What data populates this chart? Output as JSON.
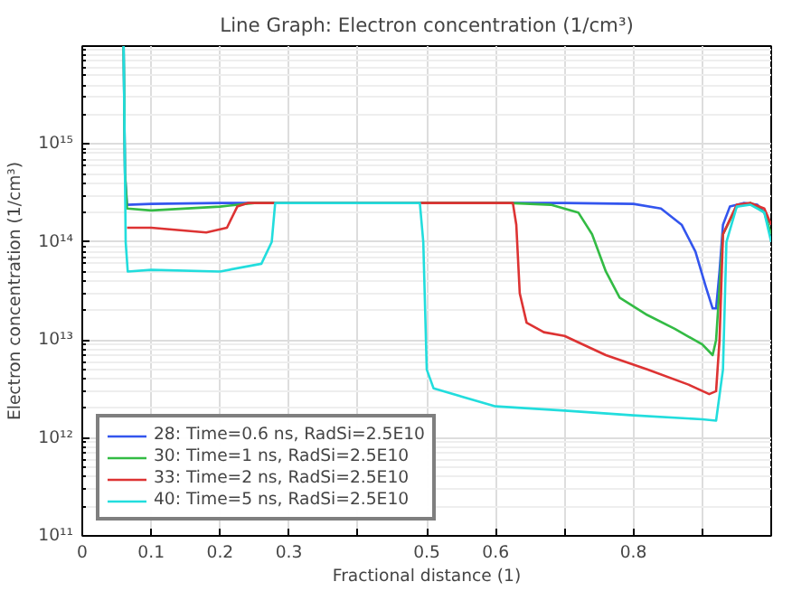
{
  "chart_data": {
    "type": "line",
    "title": "Line Graph: Electron concentration (1/cm³)",
    "xlabel": "Fractional distance (1)",
    "ylabel": "Electron concentration (1/cm³)",
    "log": "y",
    "grid": true,
    "legend": "bottom left",
    "line_style": "solid",
    "marker": "none",
    "xlim": [
      0,
      1
    ],
    "ylim": [
      100000000000.0,
      1e+16
    ],
    "xticks": [
      0,
      0.1,
      0.2,
      0.3,
      {
        "value": 0.4,
        "label": null
      },
      0.5,
      0.6,
      {
        "value": 0.7,
        "label": null
      },
      0.8,
      {
        "value": 0.9,
        "label": null
      }
    ],
    "yticks": [
      {
        "value": 100000000000.0,
        "label": "10¹¹"
      },
      {
        "value": 1000000000000.0,
        "label": "10¹²"
      },
      {
        "value": 10000000000000.0,
        "label": "10¹³"
      },
      {
        "value": 100000000000000.0,
        "label": "10¹⁴"
      },
      {
        "value": 1000000000000000.0,
        "label": "10¹⁵"
      },
      {
        "value": 1e+16,
        "label": null
      }
    ],
    "series": [
      {
        "name": "28: Time=0.6 ns, RadSi=2.5E10",
        "color": "#3355ee",
        "x": [
          0.06,
          0.062,
          0.065,
          0.1,
          0.2,
          0.7,
          0.8,
          0.84,
          0.87,
          0.89,
          0.905,
          0.915,
          0.92,
          0.925,
          0.93,
          0.94,
          0.96,
          0.98,
          0.99,
          1.0
        ],
        "values": [
          1e+16,
          500000000000000.0,
          240000000000000.0,
          245000000000000.0,
          250000000000000.0,
          250000000000000.0,
          245000000000000.0,
          220000000000000.0,
          150000000000000.0,
          80000000000000.0,
          35000000000000.0,
          21000000000000.0,
          21000000000000.0,
          50000000000000.0,
          150000000000000.0,
          230000000000000.0,
          250000000000000.0,
          240000000000000.0,
          200000000000000.0,
          150000000000000.0
        ]
      },
      {
        "name": "30: Time=1 ns, RadSi=2.5E10",
        "color": "#33bb44",
        "x": [
          0.06,
          0.062,
          0.065,
          0.1,
          0.2,
          0.25,
          0.62,
          0.68,
          0.72,
          0.74,
          0.76,
          0.78,
          0.82,
          0.86,
          0.9,
          0.915,
          0.92,
          0.93,
          0.95,
          0.97,
          0.99,
          1.0
        ],
        "values": [
          1e+16,
          500000000000000.0,
          220000000000000.0,
          210000000000000.0,
          230000000000000.0,
          250000000000000.0,
          250000000000000.0,
          240000000000000.0,
          200000000000000.0,
          120000000000000.0,
          50000000000000.0,
          27000000000000.0,
          18000000000000.0,
          13000000000000.0,
          9000000000000.0,
          7000000000000.0,
          10000000000000.0,
          120000000000000.0,
          230000000000000.0,
          250000000000000.0,
          200000000000000.0,
          120000000000000.0
        ]
      },
      {
        "name": "33: Time=2 ns, RadSi=2.5E10",
        "color": "#dd3333",
        "x": [
          0.065,
          0.1,
          0.18,
          0.21,
          0.225,
          0.24,
          0.625,
          0.63,
          0.635,
          0.645,
          0.67,
          0.7,
          0.76,
          0.82,
          0.88,
          0.91,
          0.92,
          0.925,
          0.93,
          0.95,
          0.97,
          0.99,
          1.0
        ],
        "values": [
          140000000000000.0,
          140000000000000.0,
          125000000000000.0,
          140000000000000.0,
          230000000000000.0,
          250000000000000.0,
          250000000000000.0,
          150000000000000.0,
          30000000000000.0,
          15000000000000.0,
          12000000000000.0,
          11000000000000.0,
          7000000000000.0,
          5000000000000.0,
          3500000000000.0,
          2800000000000.0,
          3000000000000.0,
          10000000000000.0,
          120000000000000.0,
          240000000000000.0,
          250000000000000.0,
          220000000000000.0,
          150000000000000.0
        ]
      },
      {
        "name": "40: Time=5 ns, RadSi=2.5E10",
        "color": "#22dddd",
        "x": [
          0.06,
          0.063,
          0.066,
          0.1,
          0.2,
          0.26,
          0.275,
          0.28,
          0.49,
          0.495,
          0.5,
          0.51,
          0.6,
          0.7,
          0.8,
          0.9,
          0.92,
          0.93,
          0.935,
          0.95,
          0.97,
          0.99,
          1.0
        ],
        "values": [
          1e+16,
          100000000000000.0,
          50000000000000.0,
          52000000000000.0,
          50000000000000.0,
          60000000000000.0,
          100000000000000.0,
          250000000000000.0,
          250000000000000.0,
          100000000000000.0,
          5000000000000.0,
          3200000000000.0,
          2100000000000.0,
          1900000000000.0,
          1700000000000.0,
          1550000000000.0,
          1500000000000.0,
          5000000000000.0,
          100000000000000.0,
          230000000000000.0,
          240000000000000.0,
          200000000000000.0,
          100000000000000.0
        ]
      }
    ]
  }
}
